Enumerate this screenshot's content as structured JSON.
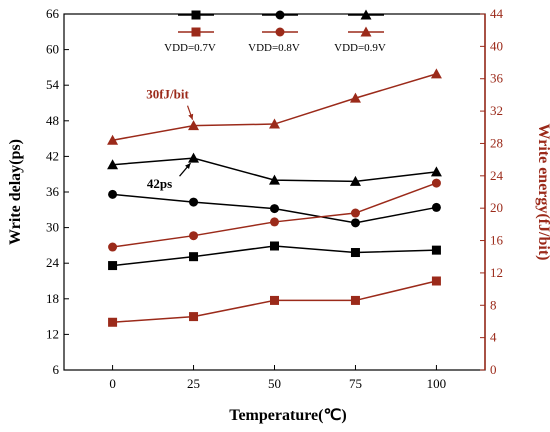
{
  "chart_data": {
    "type": "line",
    "x": [
      0,
      25,
      50,
      75,
      100
    ],
    "xlabel": "Temperature(℃)",
    "ylabel_left": "Write delay(ps)",
    "ylabel_right": "Write energy(fJ/bit)",
    "xlim": [
      -15,
      115
    ],
    "ylim_left": [
      6,
      66
    ],
    "ylim_right": [
      0,
      44
    ],
    "xticks": [
      "0",
      "25",
      "50",
      "75",
      "100"
    ],
    "yticks_left": [
      "6",
      "12",
      "18",
      "24",
      "30",
      "36",
      "42",
      "48",
      "54",
      "60",
      "66"
    ],
    "yticks_right": [
      "0",
      "4",
      "8",
      "12",
      "16",
      "20",
      "24",
      "28",
      "32",
      "36",
      "40",
      "44"
    ],
    "colors": {
      "delay": "#000000",
      "energy": "#9b2a1a"
    },
    "legend_labels": [
      "VDD=0.7V",
      "VDD=0.8V",
      "VDD=0.9V"
    ],
    "series": [
      {
        "axis": "left",
        "color": "delay",
        "marker": "square",
        "legend_index": 0,
        "values": [
          23.6,
          25.1,
          26.9,
          25.8,
          26.2
        ]
      },
      {
        "axis": "left",
        "color": "delay",
        "marker": "circle",
        "legend_index": 1,
        "values": [
          35.6,
          34.3,
          33.2,
          30.8,
          33.4
        ]
      },
      {
        "axis": "left",
        "color": "delay",
        "marker": "triangle",
        "legend_index": 2,
        "values": [
          40.6,
          41.7,
          38.0,
          37.8,
          39.4
        ]
      },
      {
        "axis": "right",
        "color": "energy",
        "marker": "square",
        "legend_index": 0,
        "values": [
          5.9,
          6.6,
          8.6,
          8.6,
          11.0
        ]
      },
      {
        "axis": "right",
        "color": "energy",
        "marker": "circle",
        "legend_index": 1,
        "values": [
          15.2,
          16.6,
          18.3,
          19.4,
          23.1
        ]
      },
      {
        "axis": "right",
        "color": "energy",
        "marker": "triangle",
        "legend_index": 2,
        "values": [
          28.4,
          30.2,
          30.4,
          33.6,
          36.6
        ]
      }
    ],
    "annotations": [
      {
        "text": "42ps",
        "color": "delay",
        "target_series": 2,
        "target_index": 1
      },
      {
        "text": "30fJ/bit",
        "color": "energy",
        "target_series": 5,
        "target_index": 1
      }
    ],
    "grid": false
  }
}
